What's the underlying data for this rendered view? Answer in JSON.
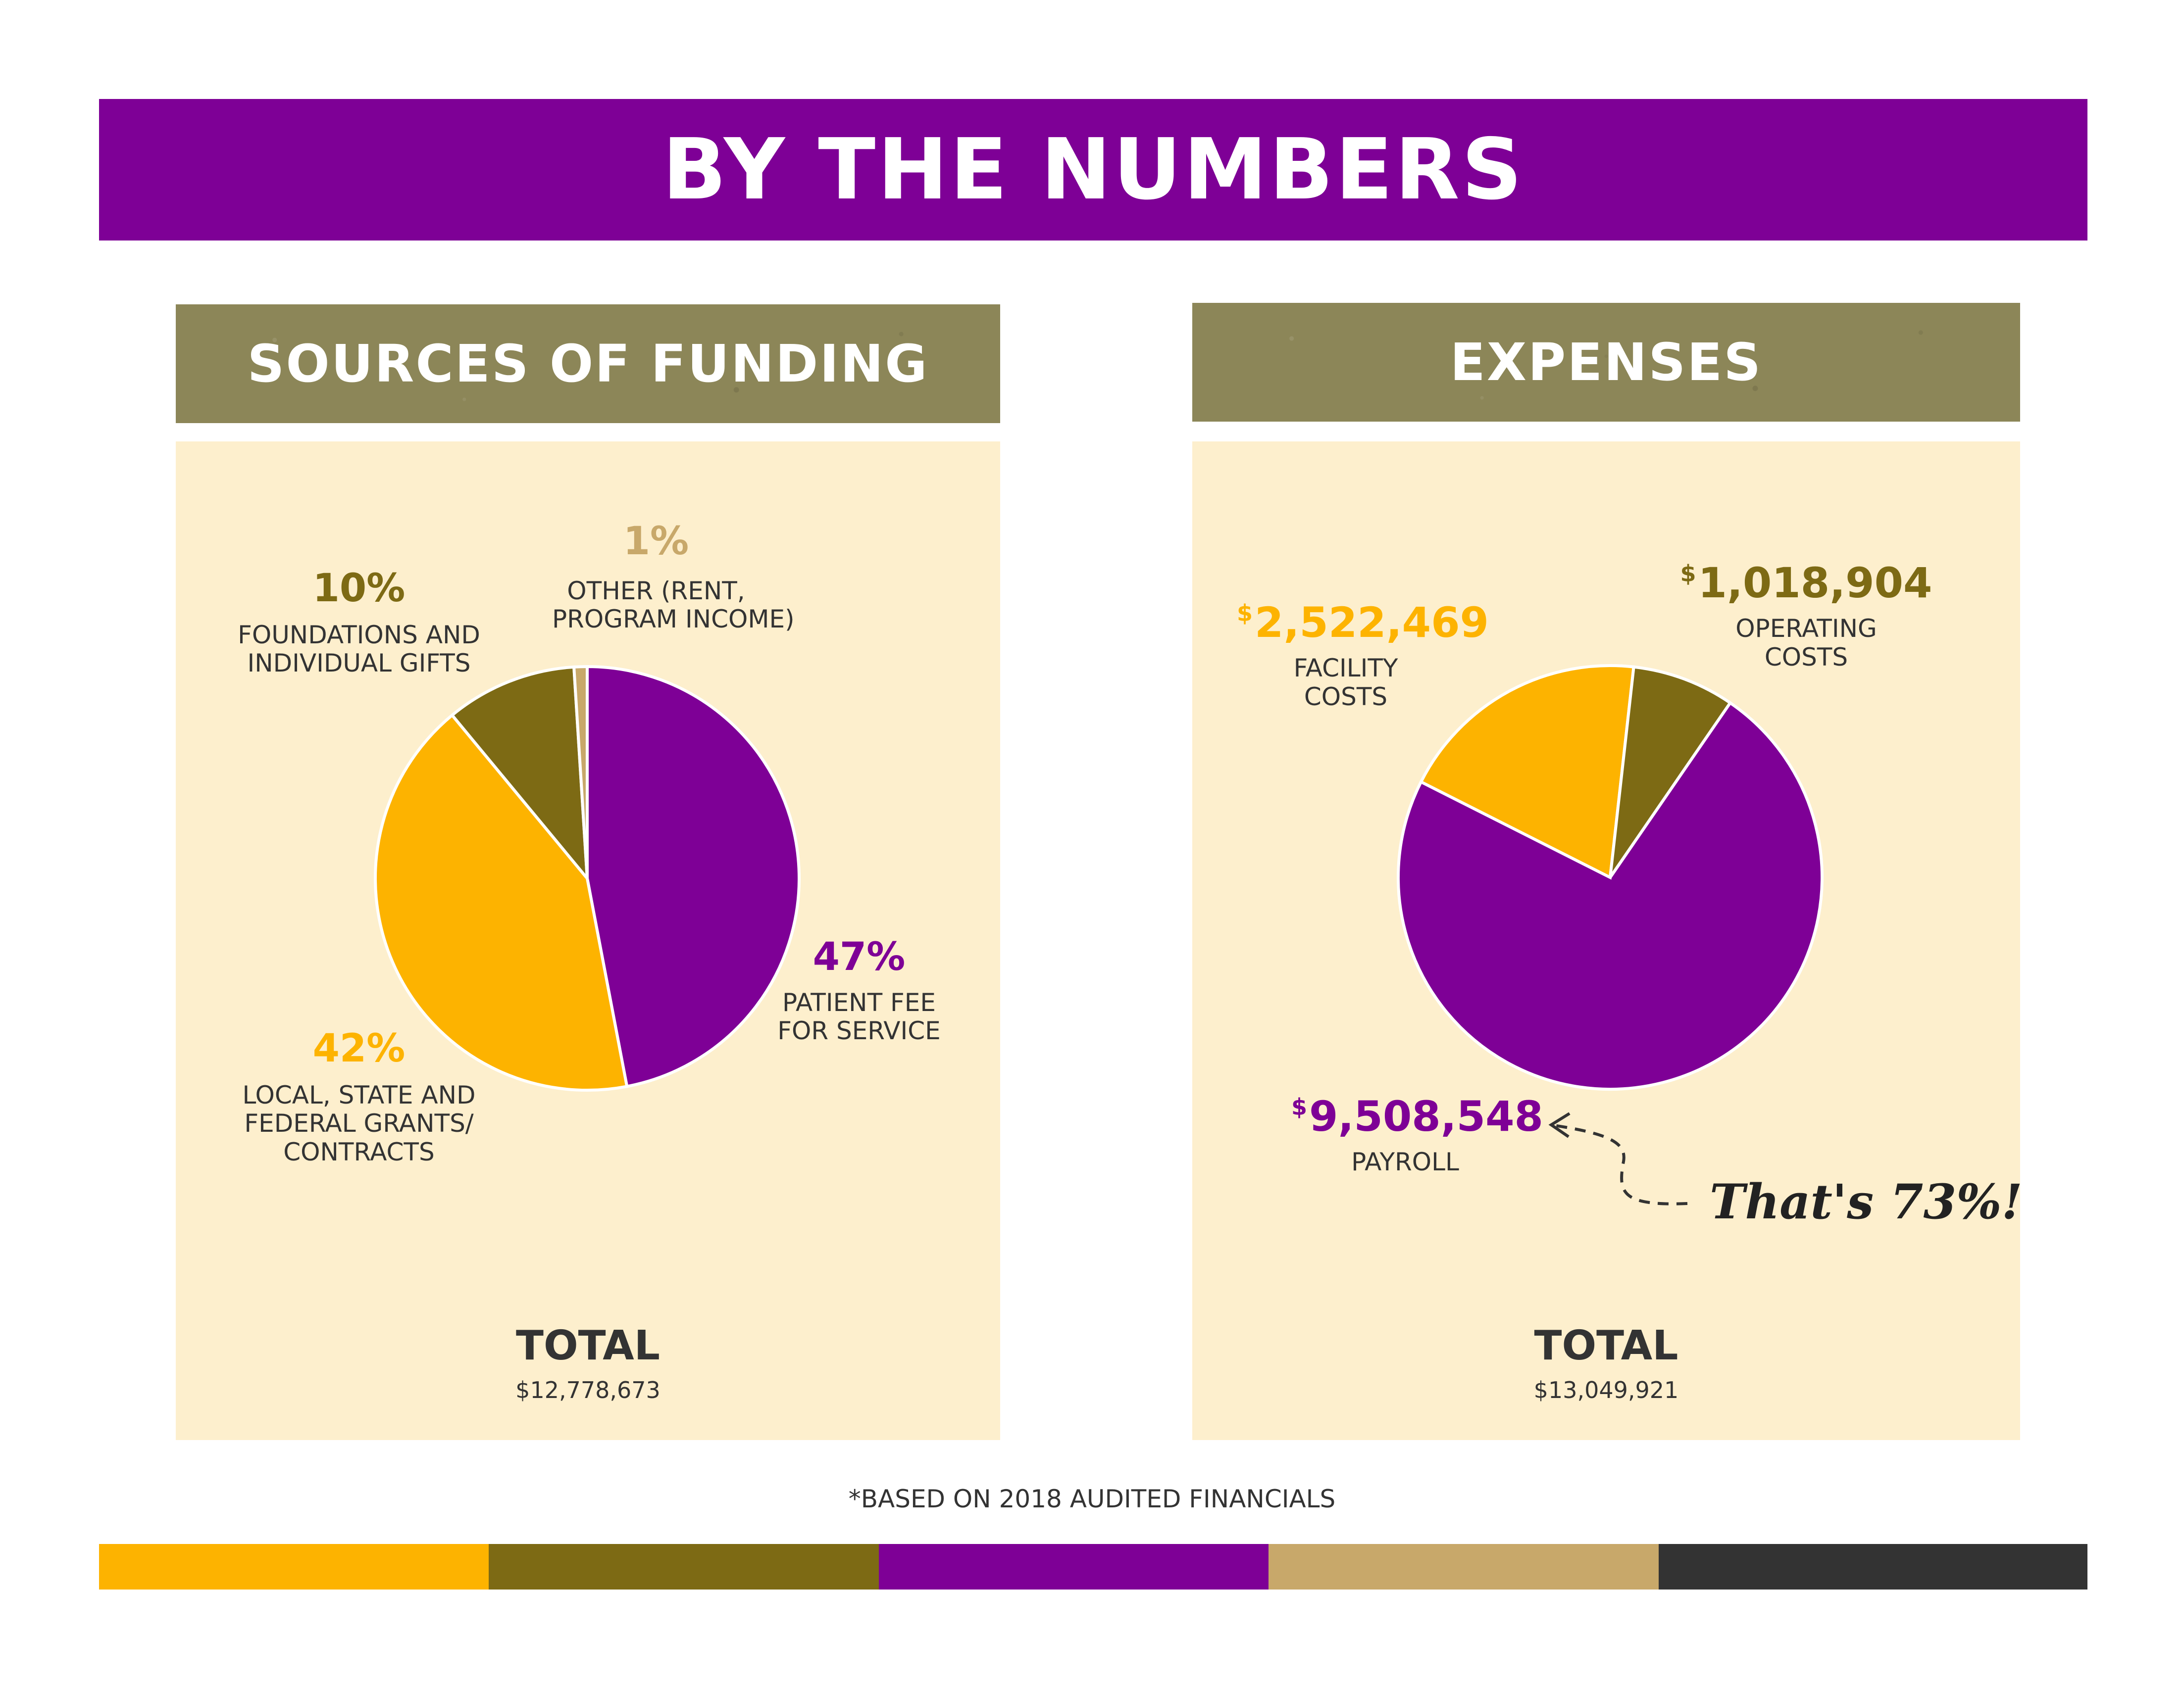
{
  "header": {
    "title": "BY THE NUMBERS"
  },
  "colors": {
    "purple": "#7e0096",
    "gold": "#fdb300",
    "olive": "#7d6a14",
    "tan": "#c8a86a",
    "dark": "#333333",
    "panel_bg": "#fdefcd",
    "header_bg": "#8c8658"
  },
  "funding": {
    "title": "SOURCES OF FUNDING",
    "labels": {
      "other_pct": "1%",
      "other_desc_1": "OTHER (RENT,",
      "other_desc_2": "PROGRAM INCOME)",
      "foundations_pct": "10%",
      "foundations_desc_1": "FOUNDATIONS AND",
      "foundations_desc_2": "INDIVIDUAL GIFTS",
      "patient_pct": "47%",
      "patient_desc_1": "PATIENT FEE",
      "patient_desc_2": "FOR SERVICE",
      "grants_pct": "42%",
      "grants_desc_1": "LOCAL, STATE AND",
      "grants_desc_2": "FEDERAL GRANTS/",
      "grants_desc_3": "CONTRACTS"
    },
    "total_label": "TOTAL",
    "total_value": "$12,778,673"
  },
  "expenses": {
    "title": "EXPENSES",
    "labels": {
      "facility_currency": "$",
      "facility_amount": "2,522,469",
      "facility_desc_1": "FACILITY",
      "facility_desc_2": "COSTS",
      "operating_currency": "$",
      "operating_amount": "1,018,904",
      "operating_desc_1": "OPERATING",
      "operating_desc_2": "COSTS",
      "payroll_currency": "$",
      "payroll_amount": "9,508,548",
      "payroll_desc": "PAYROLL"
    },
    "annotation": "That's 73%!",
    "total_label": "TOTAL",
    "total_value": "$13,049,921"
  },
  "footnote": "*BASED ON 2018 AUDITED FINANCIALS",
  "chart_data": [
    {
      "type": "pie",
      "title": "SOURCES OF FUNDING",
      "categories": [
        "PATIENT FEE FOR SERVICE",
        "LOCAL, STATE AND FEDERAL GRANTS/CONTRACTS",
        "FOUNDATIONS AND INDIVIDUAL GIFTS",
        "OTHER (RENT, PROGRAM INCOME)"
      ],
      "values": [
        47,
        42,
        10,
        1
      ],
      "unit": "%",
      "colors": [
        "#7e0096",
        "#fdb300",
        "#7d6a14",
        "#c8a86a"
      ],
      "total": "$12,778,673"
    },
    {
      "type": "pie",
      "title": "EXPENSES",
      "categories": [
        "PAYROLL",
        "FACILITY COSTS",
        "OPERATING COSTS"
      ],
      "values": [
        9508548,
        2522469,
        1018904
      ],
      "unit": "$",
      "colors": [
        "#7e0096",
        "#fdb300",
        "#7d6a14"
      ],
      "total": "$13,049,921"
    }
  ]
}
